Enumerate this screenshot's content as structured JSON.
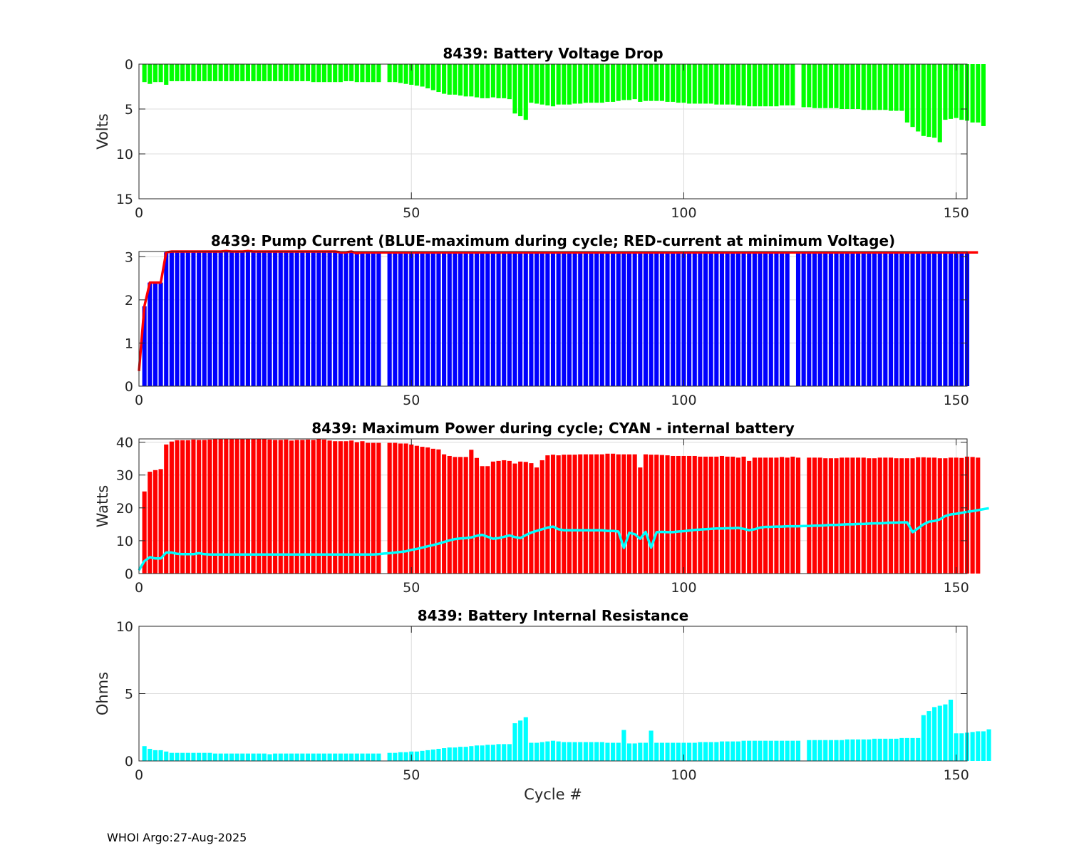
{
  "footer": "WHOI Argo:27-Aug-2025",
  "colors": {
    "voltage": "#00ff00",
    "pump_max": "#0000ff",
    "pump_min": "#ff0000",
    "power": "#ff0000",
    "power_internal": "#00ffff",
    "resistance": "#00ffff",
    "grid": "#dcdcdc",
    "axis": "#262626"
  },
  "chart_data": [
    {
      "type": "bar",
      "title": "8439: Battery Voltage Drop",
      "xlabel": "",
      "ylabel": "Volts",
      "xlim": [
        0,
        152
      ],
      "ylim": [
        0,
        15
      ],
      "y_reversed": true,
      "xticks": [
        0,
        50,
        100,
        150
      ],
      "yticks": [
        0,
        5,
        10,
        15
      ],
      "grid": true,
      "x_start": 1,
      "series": [
        {
          "name": "Voltage drop",
          "color": "#00ff00",
          "values": [
            2.0,
            2.2,
            2.0,
            2.0,
            2.3,
            1.9,
            1.9,
            1.9,
            1.9,
            1.9,
            1.9,
            1.9,
            1.9,
            1.9,
            1.9,
            1.9,
            1.9,
            1.9,
            1.9,
            1.9,
            1.9,
            1.9,
            1.9,
            1.9,
            1.9,
            1.9,
            1.9,
            1.9,
            1.9,
            1.9,
            1.9,
            2.0,
            2.0,
            2.0,
            2.0,
            2.0,
            2.0,
            1.9,
            1.9,
            2.0,
            2.0,
            2.0,
            2.0,
            2.0,
            null,
            2.0,
            2.0,
            2.1,
            2.2,
            2.3,
            2.4,
            2.5,
            2.7,
            2.9,
            3.1,
            3.3,
            3.4,
            3.4,
            3.5,
            3.6,
            3.6,
            3.7,
            3.8,
            3.8,
            3.7,
            3.8,
            3.8,
            3.9,
            5.5,
            5.8,
            6.2,
            4.3,
            4.4,
            4.5,
            4.6,
            4.7,
            4.5,
            4.5,
            4.5,
            4.4,
            4.4,
            4.3,
            4.3,
            4.3,
            4.3,
            4.2,
            4.2,
            4.1,
            4.0,
            4.0,
            3.9,
            4.2,
            4.1,
            4.1,
            4.1,
            4.1,
            4.2,
            4.2,
            4.3,
            4.3,
            4.4,
            4.4,
            4.4,
            4.4,
            4.4,
            4.5,
            4.5,
            4.5,
            4.5,
            4.6,
            4.6,
            4.7,
            4.7,
            4.7,
            4.7,
            4.7,
            4.7,
            4.6,
            4.6,
            4.6,
            null,
            4.8,
            4.8,
            4.9,
            4.9,
            4.9,
            4.9,
            4.9,
            5.0,
            5.0,
            5.0,
            5.0,
            5.1,
            5.1,
            5.1,
            5.1,
            5.1,
            5.2,
            5.2,
            5.2,
            6.5,
            7.0,
            7.5,
            8.0,
            8.1,
            8.2,
            8.7,
            6.2,
            6.1,
            6.0,
            6.2,
            6.3,
            6.5,
            6.5,
            6.9
          ]
        }
      ]
    },
    {
      "type": "bar",
      "title": "8439: Pump Current (BLUE-maximum during cycle; RED-current at minimum Voltage)",
      "xlabel": "",
      "ylabel": "",
      "xlim": [
        0,
        152
      ],
      "ylim": [
        0,
        3.12
      ],
      "xticks": [
        0,
        50,
        100,
        150
      ],
      "yticks": [
        0,
        1,
        2,
        3
      ],
      "grid": true,
      "x_start": 1,
      "series": [
        {
          "name": "Maximum during cycle",
          "color": "#0000ff",
          "kind": "bar",
          "values": [
            1.85,
            2.4,
            2.4,
            2.4,
            3.1,
            3.12,
            3.12,
            3.12,
            3.12,
            3.12,
            3.12,
            3.12,
            3.12,
            3.12,
            3.12,
            3.12,
            3.12,
            3.12,
            3.12,
            3.12,
            3.12,
            3.12,
            3.12,
            3.12,
            3.12,
            3.12,
            3.12,
            3.12,
            3.12,
            3.12,
            3.12,
            3.12,
            3.12,
            3.12,
            3.12,
            3.12,
            3.12,
            3.12,
            3.12,
            3.12,
            3.12,
            3.12,
            3.12,
            3.12,
            null,
            3.12,
            3.12,
            3.12,
            3.12,
            3.12,
            3.12,
            3.12,
            3.12,
            3.12,
            3.12,
            3.12,
            3.12,
            3.12,
            3.12,
            3.12,
            3.12,
            3.12,
            3.12,
            3.12,
            3.12,
            3.12,
            3.12,
            3.12,
            3.12,
            3.12,
            3.1,
            3.1,
            3.1,
            3.1,
            3.1,
            3.1,
            3.1,
            3.1,
            3.1,
            3.1,
            3.1,
            3.1,
            3.1,
            3.1,
            3.1,
            3.1,
            3.1,
            3.1,
            3.1,
            3.1,
            3.1,
            3.1,
            3.1,
            3.1,
            3.1,
            3.1,
            3.1,
            3.1,
            3.1,
            3.1,
            3.1,
            3.1,
            3.1,
            3.1,
            3.1,
            3.1,
            3.1,
            3.1,
            3.1,
            3.1,
            3.1,
            3.1,
            3.1,
            3.1,
            3.1,
            3.1,
            3.1,
            3.1,
            3.1,
            null,
            3.1,
            3.1,
            3.1,
            3.1,
            3.1,
            3.1,
            3.1,
            3.1,
            3.1,
            3.1,
            3.1,
            3.1,
            3.1,
            3.1,
            3.1,
            3.1,
            3.1,
            3.1,
            3.1,
            3.1,
            3.1,
            3.1,
            3.1,
            3.1,
            3.1,
            3.1,
            3.1,
            3.1,
            3.1,
            3.1,
            3.1,
            3.1
          ]
        },
        {
          "name": "Current at minimum Voltage",
          "color": "#ff0000",
          "kind": "line",
          "x0": 0,
          "values": [
            0.35,
            1.85,
            2.4,
            2.4,
            2.4,
            3.1,
            3.12,
            3.12,
            3.12,
            3.12,
            3.12,
            3.12,
            3.12,
            3.12,
            3.12,
            3.12,
            3.13,
            3.12,
            3.12,
            3.12,
            3.13,
            3.12,
            3.12,
            3.12,
            3.12,
            3.12,
            3.12,
            3.12,
            3.12,
            3.12,
            3.12,
            3.12,
            3.12,
            3.12,
            3.12,
            3.12,
            3.12,
            3.1,
            3.1,
            3.12,
            3.08,
            3.1,
            3.1,
            3.1,
            3.1,
            3.1,
            3.1,
            3.1,
            3.1,
            3.1,
            3.1,
            3.1,
            3.1,
            3.1,
            3.1,
            3.1,
            3.1,
            3.1,
            3.1,
            3.1,
            3.1,
            3.1,
            3.1,
            3.1,
            3.1,
            3.1,
            3.1,
            3.1,
            3.1,
            3.1,
            3.1,
            3.1,
            3.1,
            3.1,
            3.1,
            3.1,
            3.1,
            3.1,
            3.1,
            3.1,
            3.1,
            3.1,
            3.1,
            3.1,
            3.1,
            3.1,
            3.1,
            3.1,
            3.1,
            3.1,
            3.1,
            3.1,
            3.1,
            3.1,
            3.1,
            3.1,
            3.1,
            3.1,
            3.1,
            3.1,
            3.1,
            3.1,
            3.1,
            3.1,
            3.1,
            3.1,
            3.1,
            3.1,
            3.1,
            3.1,
            3.1,
            3.1,
            3.1,
            3.1,
            3.1,
            3.1,
            3.1,
            3.1,
            3.1,
            3.1,
            3.1,
            3.1,
            3.1,
            3.1,
            3.1,
            3.1,
            3.1,
            3.1,
            3.1,
            3.1,
            3.1,
            3.1,
            3.1,
            3.1,
            3.1,
            3.1,
            3.1,
            3.1,
            3.1,
            3.1,
            3.1,
            3.1,
            3.1,
            3.1,
            3.1,
            3.1,
            3.1,
            3.1,
            3.1,
            3.1,
            3.1,
            3.1,
            3.1,
            3.1,
            3.1
          ]
        }
      ]
    },
    {
      "type": "bar",
      "title": "8439: Maximum Power during cycle; CYAN - internal battery",
      "xlabel": "",
      "ylabel": "Watts",
      "xlim": [
        0,
        152
      ],
      "ylim": [
        0,
        41
      ],
      "xticks": [
        0,
        50,
        100,
        150
      ],
      "yticks": [
        0,
        10,
        20,
        30,
        40
      ],
      "grid": true,
      "x_start": 1,
      "series": [
        {
          "name": "Maximum Power",
          "color": "#ff0000",
          "kind": "bar",
          "values": [
            25,
            31,
            31.5,
            31.8,
            39.3,
            40.2,
            40.6,
            40.6,
            40.6,
            40.8,
            40.7,
            40.7,
            40.8,
            41.0,
            41.0,
            41.0,
            41.0,
            41.0,
            41.0,
            41.0,
            41.0,
            41.0,
            40.9,
            40.8,
            40.7,
            40.7,
            40.8,
            40.5,
            40.7,
            40.7,
            40.8,
            40.7,
            41.0,
            40.8,
            40.5,
            40.3,
            40.3,
            40.3,
            40.5,
            40.0,
            40.3,
            39.8,
            39.8,
            39.8,
            null,
            39.8,
            39.8,
            39.6,
            39.6,
            39.3,
            38.9,
            38.6,
            38.4,
            38.0,
            37.8,
            36.3,
            35.8,
            35.5,
            35.5,
            35.5,
            37.7,
            35.2,
            32.7,
            32.7,
            34.1,
            34.3,
            34.5,
            34.3,
            33.5,
            34.1,
            34.0,
            33.6,
            32.3,
            34.5,
            36.0,
            36.2,
            36.0,
            36.2,
            36.2,
            36.2,
            36.3,
            36.3,
            36.3,
            36.3,
            36.3,
            36.5,
            36.5,
            36.3,
            36.3,
            36.3,
            36.3,
            32.3,
            36.3,
            36.2,
            36.2,
            36.1,
            36.0,
            35.8,
            35.8,
            35.8,
            35.8,
            35.8,
            35.6,
            35.6,
            35.6,
            35.6,
            35.8,
            35.6,
            35.6,
            35.3,
            35.6,
            34.3,
            35.3,
            35.3,
            35.3,
            35.3,
            35.3,
            35.5,
            35.3,
            35.6,
            35.3,
            null,
            35.3,
            35.3,
            35.3,
            35.1,
            35.1,
            35.1,
            35.3,
            35.3,
            35.3,
            35.3,
            35.3,
            35.1,
            35.1,
            35.3,
            35.3,
            35.3,
            35.1,
            35.1,
            35.1,
            35.1,
            35.4,
            35.4,
            35.3,
            35.3,
            35.1,
            35.1,
            35.3,
            35.3,
            35.2,
            35.6,
            35.5,
            35.3
          ]
        },
        {
          "name": "Internal battery",
          "color": "#00ffff",
          "kind": "line",
          "x0": 0,
          "values": [
            1,
            3.8,
            5,
            4.6,
            4.6,
            6.4,
            6.4,
            6.0,
            5.9,
            5.9,
            5.9,
            6.2,
            5.9,
            5.8,
            5.8,
            5.8,
            5.8,
            5.8,
            5.8,
            5.8,
            5.8,
            5.8,
            5.8,
            5.8,
            5.8,
            5.8,
            5.8,
            5.8,
            5.8,
            5.8,
            5.8,
            5.8,
            5.8,
            5.8,
            5.8,
            5.8,
            5.8,
            5.8,
            5.8,
            5.8,
            5.8,
            5.8,
            5.8,
            5.8,
            5.9,
            6.1,
            6.2,
            6.4,
            6.6,
            6.8,
            7.2,
            7.5,
            7.9,
            8.3,
            8.7,
            9.1,
            9.6,
            10.1,
            10.5,
            10.7,
            10.8,
            11.0,
            11.5,
            11.8,
            11.2,
            10.6,
            10.8,
            11.2,
            11.6,
            11.1,
            10.8,
            11.7,
            12.5,
            13.0,
            13.5,
            14.0,
            14.3,
            13.5,
            13.2,
            13.2,
            13.2,
            13.2,
            13.2,
            13.2,
            13.2,
            13.2,
            13.0,
            13.0,
            12.8,
            7.8,
            12.4,
            12.0,
            10.6,
            12.7,
            7.9,
            12.6,
            12.7,
            12.6,
            12.6,
            12.8,
            12.9,
            13.1,
            13.3,
            13.4,
            13.5,
            13.6,
            13.7,
            13.7,
            13.8,
            13.8,
            13.9,
            13.6,
            13.2,
            13.5,
            14.0,
            14.2,
            14.2,
            14.3,
            14.3,
            14.4,
            14.4,
            14.4,
            14.5,
            14.5,
            14.6,
            14.6,
            14.7,
            14.8,
            14.8,
            14.9,
            15.0,
            15.0,
            15.1,
            15.1,
            15.2,
            15.3,
            15.3,
            15.4,
            15.5,
            15.5,
            15.6,
            15.6,
            12.6,
            13.8,
            15.0,
            15.8,
            16.0,
            16.5,
            17.5,
            18.0,
            18.2,
            18.5,
            18.8,
            19.0,
            19.3,
            19.6,
            19.9
          ]
        }
      ]
    },
    {
      "type": "bar",
      "title": "8439: Battery Internal Resistance",
      "xlabel": "Cycle #",
      "ylabel": "Ohms",
      "xlim": [
        0,
        152
      ],
      "ylim": [
        0,
        10
      ],
      "xticks": [
        0,
        50,
        100,
        150
      ],
      "yticks": [
        0,
        5,
        10
      ],
      "grid": true,
      "x_start": 1,
      "series": [
        {
          "name": "Internal Resistance",
          "color": "#00ffff",
          "values": [
            1.1,
            0.9,
            0.8,
            0.8,
            0.7,
            0.6,
            0.6,
            0.6,
            0.6,
            0.6,
            0.6,
            0.6,
            0.6,
            0.55,
            0.55,
            0.55,
            0.55,
            0.55,
            0.55,
            0.55,
            0.55,
            0.55,
            0.55,
            0.5,
            0.55,
            0.55,
            0.55,
            0.55,
            0.55,
            0.55,
            0.55,
            0.55,
            0.55,
            0.55,
            0.55,
            0.55,
            0.55,
            0.55,
            0.55,
            0.55,
            0.55,
            0.55,
            0.55,
            0.55,
            null,
            0.6,
            0.6,
            0.65,
            0.65,
            0.7,
            0.7,
            0.75,
            0.8,
            0.85,
            0.9,
            0.95,
            1.0,
            1.0,
            1.05,
            1.05,
            1.1,
            1.15,
            1.15,
            1.2,
            1.2,
            1.25,
            1.25,
            1.25,
            2.8,
            3.0,
            3.25,
            1.35,
            1.35,
            1.4,
            1.45,
            1.5,
            1.45,
            1.4,
            1.4,
            1.4,
            1.4,
            1.4,
            1.4,
            1.4,
            1.4,
            1.35,
            1.35,
            1.35,
            2.3,
            1.3,
            1.3,
            1.35,
            1.35,
            2.25,
            1.35,
            1.35,
            1.35,
            1.35,
            1.35,
            1.35,
            1.35,
            1.35,
            1.4,
            1.4,
            1.4,
            1.4,
            1.45,
            1.45,
            1.45,
            1.45,
            1.5,
            1.5,
            1.5,
            1.5,
            1.5,
            1.5,
            1.5,
            1.5,
            1.5,
            1.5,
            1.5,
            null,
            1.55,
            1.55,
            1.55,
            1.55,
            1.55,
            1.55,
            1.55,
            1.6,
            1.6,
            1.6,
            1.6,
            1.6,
            1.65,
            1.65,
            1.65,
            1.65,
            1.65,
            1.7,
            1.7,
            1.7,
            1.7,
            3.4,
            3.7,
            4.0,
            4.1,
            4.2,
            4.55,
            2.05,
            2.05,
            2.1,
            2.15,
            2.2,
            2.2,
            2.35
          ]
        }
      ]
    }
  ]
}
